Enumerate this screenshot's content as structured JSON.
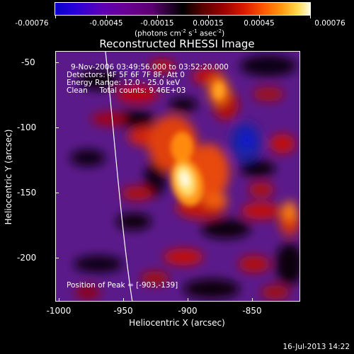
{
  "colorbar": {
    "tick_labels": [
      "-0.00076",
      "-0.00045",
      "-0.00015",
      "0.00015",
      "0.00045",
      "0.00076"
    ],
    "units_main": "(photons cm",
    "units_exp1": "-2",
    "units_mid1": " s",
    "units_exp2": "-1",
    "units_mid2": " asec",
    "units_exp3": "-2",
    "units_end": ")"
  },
  "plot": {
    "title": "Reconstructed RHESSI Image",
    "xlabel": "Heliocentric X (arcsec)",
    "ylabel": "Heliocentric Y (arcsec)",
    "x_ticks": [
      "-1000",
      "-950",
      "-900",
      "-850"
    ],
    "y_ticks": [
      "-50",
      "-100",
      "-150",
      "-200"
    ],
    "xlim": [
      -1003,
      -813
    ],
    "ylim": [
      -233,
      -43
    ]
  },
  "info": {
    "time_range": "9-Nov-2006 03:49:56.000 to 03:52:20.000",
    "detectors": "Detectors: 4F 5F 6F 7F 8F, Att 0",
    "energy": "Energy Range: 12.0 - 25.0 keV",
    "clean": "Clean     Total counts: 9.46E+03",
    "peak": "Position of Peak = [-903,-139]"
  },
  "footer": {
    "timestamp": "16-Jul-2013 14:22"
  }
}
